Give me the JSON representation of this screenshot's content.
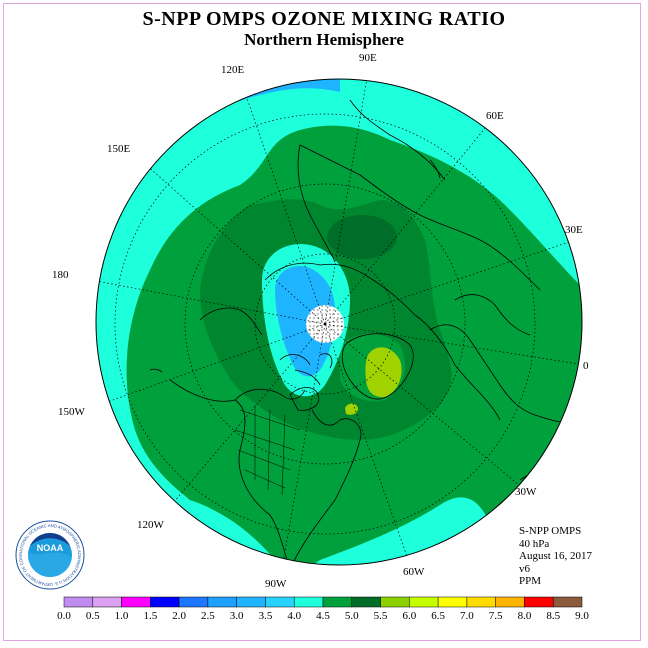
{
  "title": "S-NPP OMPS OZONE MIXING RATIO",
  "subtitle": "Northern Hemisphere",
  "longitude_labels": {
    "lon_90e": "90E",
    "lon_120e": "120E",
    "lon_60e": "60E",
    "lon_150e": "150E",
    "lon_30e": "30E",
    "lon_180": "180",
    "lon_0": "0",
    "lon_150w": "150W",
    "lon_30w": "30W",
    "lon_120w": "120W",
    "lon_60w": "60W",
    "lon_90w": "90W"
  },
  "info": {
    "instrument": "S-NPP OMPS",
    "level": "40 hPa",
    "date": "August 16, 2017",
    "version": "v6",
    "units": "PPM"
  },
  "logo": {
    "text": "NOAA",
    "ring_text": "NATIONAL OCEANIC AND ATMOSPHERIC ADMINISTRATION U.S. DEPARTMENT OF COMMERCE"
  },
  "colorbar": {
    "colors": [
      "#c08cf0",
      "#dca0f0",
      "#ff00ff",
      "#b400f0",
      "#0000ff",
      "#1e78ff",
      "#1ea0ff",
      "#1eb4ff",
      "#28d2ff",
      "#1effdc",
      "#00a03c",
      "#008c32",
      "#006e28",
      "#8cd200",
      "#c8ff00",
      "#ffff00",
      "#ffdc00",
      "#ffb400",
      "#ff8c00",
      "#ff5000",
      "#ff0000",
      "#c80000",
      "#8c5a3c"
    ],
    "tick_labels": [
      "0.0",
      "0.5",
      "1.0",
      "1.5",
      "2.0",
      "2.5",
      "3.0",
      "3.5",
      "4.0",
      "4.5",
      "5.0",
      "5.5",
      "6.0",
      "6.5",
      "7.0",
      "7.5",
      "8.0",
      "8.5",
      "9.0"
    ]
  },
  "map_colors": {
    "c3_0": "#1eb4ff",
    "c3_5": "#1effdc",
    "c4_0": "#00a03c",
    "c4_5": "#00862f",
    "c5_0": "#006e28",
    "c5_5": "#a0d200",
    "c6_0": "#c8ff00"
  }
}
